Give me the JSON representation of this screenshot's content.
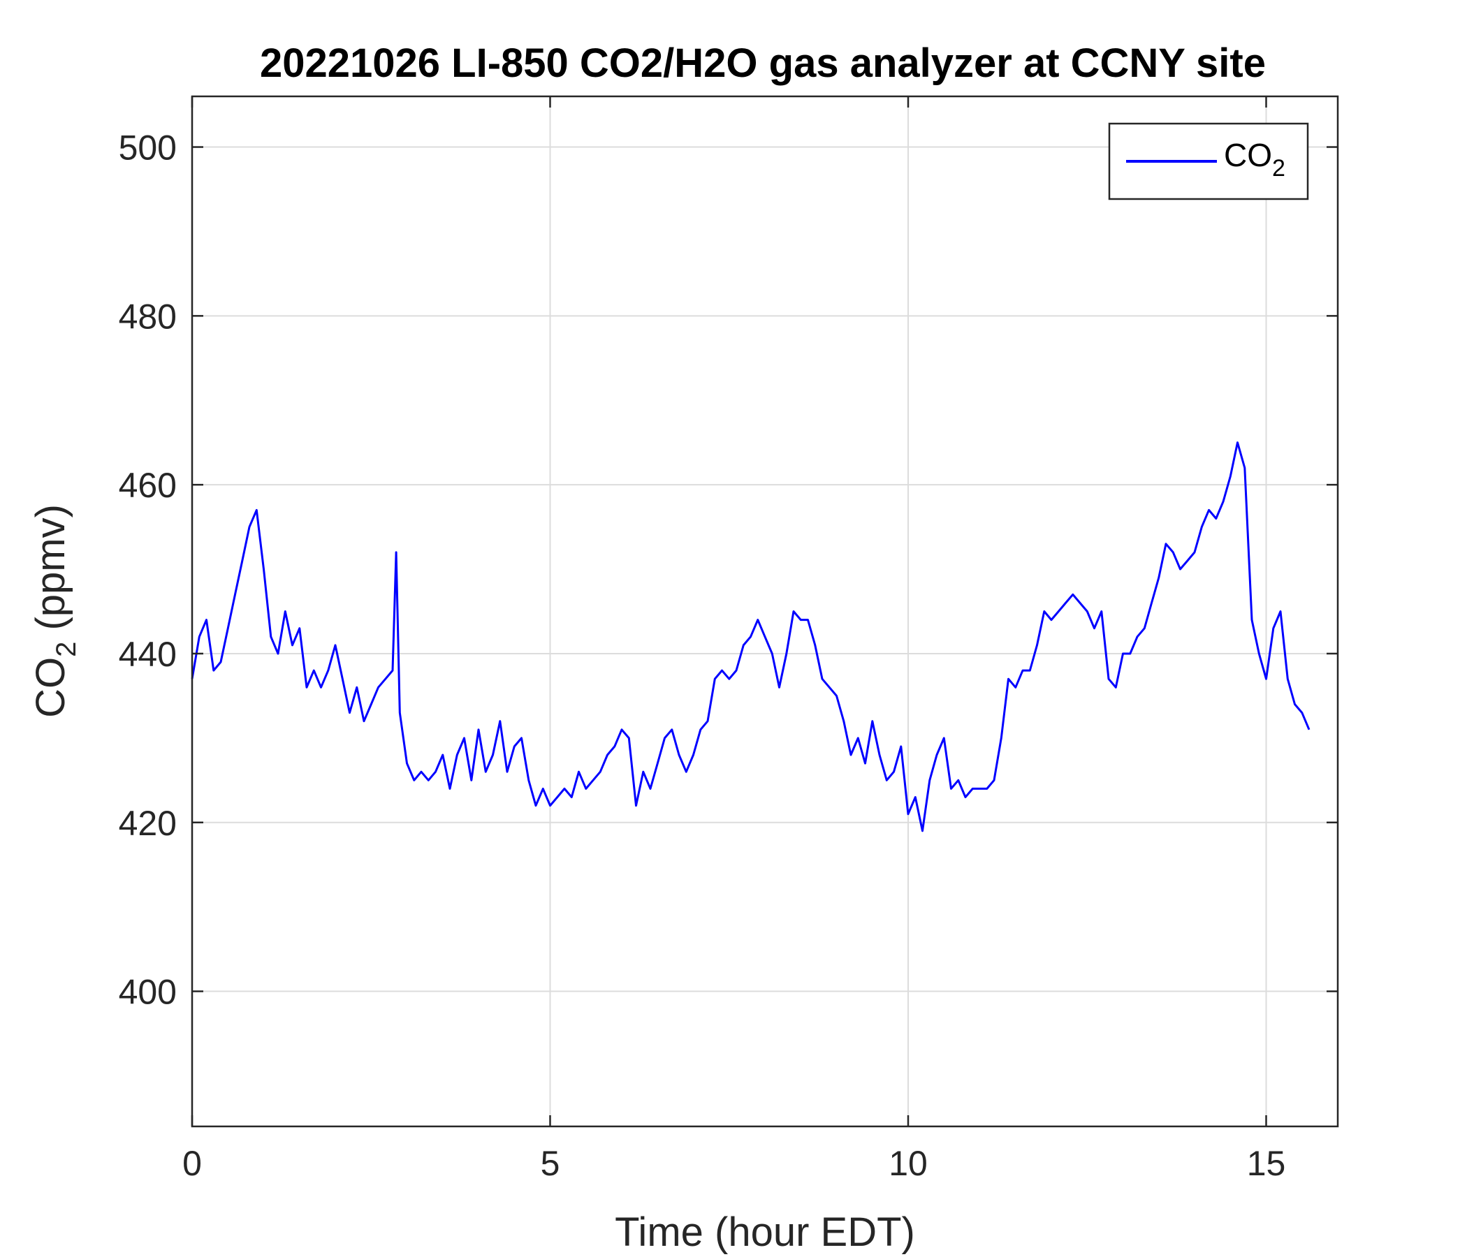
{
  "chart_data": {
    "type": "line",
    "title": "20221026 LI-850 CO2/H2O gas analyzer at CCNY site",
    "xlabel": "Time (hour EDT)",
    "ylabel_main": "CO",
    "ylabel_sub": "2",
    "ylabel_units": " (ppmv)",
    "xlim": [
      0,
      16
    ],
    "ylim": [
      384,
      506
    ],
    "xticks": [
      0,
      5,
      10,
      15
    ],
    "yticks": [
      400,
      420,
      440,
      460,
      480,
      500
    ],
    "grid": true,
    "legend": {
      "position": "top-right",
      "label_main": "CO",
      "label_sub": "2"
    },
    "series": [
      {
        "name": "CO2",
        "color": "#0000ff",
        "x": [
          0.0,
          0.1,
          0.2,
          0.3,
          0.4,
          0.5,
          0.6,
          0.7,
          0.8,
          0.9,
          1.0,
          1.1,
          1.2,
          1.3,
          1.4,
          1.5,
          1.6,
          1.7,
          1.8,
          1.9,
          2.0,
          2.1,
          2.2,
          2.3,
          2.4,
          2.5,
          2.6,
          2.7,
          2.8,
          2.85,
          2.9,
          3.0,
          3.1,
          3.2,
          3.3,
          3.4,
          3.5,
          3.6,
          3.7,
          3.8,
          3.9,
          4.0,
          4.1,
          4.2,
          4.3,
          4.4,
          4.5,
          4.6,
          4.7,
          4.8,
          4.9,
          5.0,
          5.1,
          5.2,
          5.3,
          5.4,
          5.5,
          5.6,
          5.7,
          5.8,
          5.9,
          6.0,
          6.1,
          6.2,
          6.3,
          6.4,
          6.5,
          6.6,
          6.7,
          6.8,
          6.9,
          7.0,
          7.1,
          7.2,
          7.3,
          7.4,
          7.5,
          7.6,
          7.7,
          7.8,
          7.9,
          8.0,
          8.1,
          8.2,
          8.3,
          8.4,
          8.5,
          8.6,
          8.7,
          8.8,
          8.9,
          9.0,
          9.1,
          9.2,
          9.3,
          9.4,
          9.5,
          9.6,
          9.7,
          9.8,
          9.9,
          10.0,
          10.1,
          10.2,
          10.3,
          10.4,
          10.5,
          10.6,
          10.7,
          10.8,
          10.9,
          11.0,
          11.1,
          11.2,
          11.3,
          11.4,
          11.5,
          11.6,
          11.7,
          11.8,
          11.9,
          12.0,
          12.1,
          12.2,
          12.3,
          12.4,
          12.5,
          12.6,
          12.7,
          12.8,
          12.9,
          13.0,
          13.1,
          13.2,
          13.3,
          13.4,
          13.5,
          13.6,
          13.7,
          13.8,
          13.9,
          14.0,
          14.1,
          14.2,
          14.3,
          14.4,
          14.5,
          14.6,
          14.7,
          14.8,
          14.9,
          15.0,
          15.1,
          15.2,
          15.3,
          15.4,
          15.5,
          15.6
        ],
        "y": [
          437,
          442,
          444,
          438,
          439,
          443,
          447,
          451,
          455,
          457,
          450,
          442,
          440,
          445,
          441,
          443,
          436,
          438,
          436,
          438,
          441,
          437,
          433,
          436,
          432,
          434,
          436,
          437,
          438,
          452,
          433,
          427,
          425,
          426,
          425,
          426,
          428,
          424,
          428,
          430,
          425,
          431,
          426,
          428,
          432,
          426,
          429,
          430,
          425,
          422,
          424,
          422,
          423,
          424,
          423,
          426,
          424,
          425,
          426,
          428,
          429,
          431,
          430,
          422,
          426,
          424,
          427,
          430,
          431,
          428,
          426,
          428,
          431,
          432,
          437,
          438,
          437,
          438,
          441,
          442,
          444,
          442,
          440,
          436,
          440,
          445,
          444,
          444,
          441,
          437,
          436,
          435,
          432,
          428,
          430,
          427,
          432,
          428,
          425,
          426,
          429,
          421,
          423,
          419,
          425,
          428,
          430,
          424,
          425,
          423,
          424,
          424,
          424,
          425,
          430,
          437,
          436,
          438,
          438,
          441,
          445,
          444,
          445,
          446,
          447,
          446,
          445,
          443,
          445,
          437,
          436,
          440,
          440,
          442,
          443,
          446,
          449,
          453,
          452,
          450,
          451,
          452,
          455,
          457,
          456,
          458,
          461,
          465,
          462,
          444,
          440,
          437,
          443,
          445,
          437,
          434,
          433,
          431
        ]
      }
    ]
  }
}
